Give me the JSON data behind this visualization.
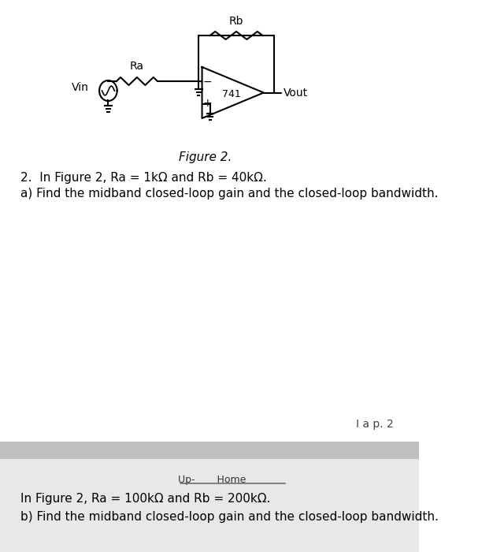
{
  "background_color": "#ffffff",
  "page_bg_color": "#f0f0f0",
  "figure_caption": "Figure 2.",
  "problem_text_line1": "2.  In Figure 2, Ra = 1kΩ and Rb = 40kΩ.",
  "problem_text_line2": "a) Find the midband closed-loop gain and the closed-loop bandwidth.",
  "bottom_text_line1": "In Figure 2, Ra = 100kΩ and Rb = 200kΩ.",
  "bottom_text_line2": "b) Find the midband closed-loop gain and the closed-loop bandwidth.",
  "page_label": "I a p. 2",
  "tab_label": "Up-⁠⁠⁠ Home⁠⁠⁠",
  "font_size_main": 11,
  "font_size_caption": 11,
  "font_size_label": 10,
  "circuit_color": "#000000",
  "gray_bar_color": "#c0c0c0",
  "bottom_section_bg": "#e8e8e8"
}
